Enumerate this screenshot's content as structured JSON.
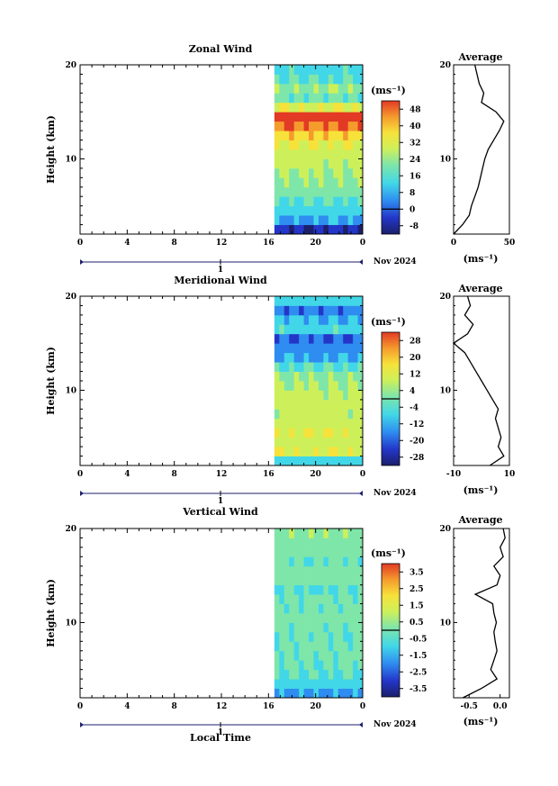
{
  "month_label": "Nov 2024",
  "day_label": "1",
  "xlabel_bottom": "Local Time",
  "time_ticks": [
    "0",
    "4",
    "8",
    "12",
    "16",
    "20",
    "0"
  ],
  "chart_data": [
    {
      "type": "heatmap",
      "title": "Zonal Wind",
      "ylabel": "Height (km)",
      "ylim": [
        2,
        20
      ],
      "y_ticks": [
        "10",
        "20"
      ],
      "x_range_hours": [
        0,
        24
      ],
      "data_start_hour": 16.5,
      "colorbar": {
        "unit": "(ms⁻¹)",
        "ticks": [
          "-8",
          "0",
          "8",
          "16",
          "24",
          "32",
          "40",
          "48"
        ],
        "range": [
          -12,
          52
        ]
      },
      "profile": {
        "title": "Average",
        "unit": "(ms⁻¹)",
        "xlim": [
          0,
          50
        ],
        "x_ticks": [
          "0",
          "50"
        ],
        "heights": [
          2,
          3,
          4,
          5,
          6,
          7,
          8,
          9,
          10,
          11,
          12,
          13,
          14,
          15,
          16,
          17,
          18,
          19,
          20
        ],
        "values": [
          0,
          8,
          14,
          16,
          19,
          22,
          24,
          26,
          28,
          31,
          36,
          41,
          45,
          38,
          25,
          27,
          23,
          21,
          19
        ]
      },
      "height_levels": [
        2,
        3,
        4,
        5,
        6,
        7,
        8,
        9,
        10,
        11,
        12,
        13,
        14,
        15,
        16,
        17,
        18,
        19,
        20
      ],
      "layer_values": [
        -4,
        8,
        12,
        16,
        20,
        22,
        24,
        26,
        27,
        30,
        36,
        44,
        50,
        30,
        18,
        22,
        16,
        14,
        12
      ]
    },
    {
      "type": "heatmap",
      "title": "Meridional Wind",
      "ylabel": "Height (km)",
      "ylim": [
        2,
        20
      ],
      "y_ticks": [
        "10",
        "20"
      ],
      "x_range_hours": [
        0,
        24
      ],
      "data_start_hour": 16.5,
      "colorbar": {
        "unit": "(ms⁻¹)",
        "ticks": [
          "-28",
          "-20",
          "-12",
          "-4",
          "4",
          "12",
          "20",
          "28"
        ],
        "range": [
          -32,
          32
        ]
      },
      "profile": {
        "title": "Average",
        "unit": "(ms⁻¹)",
        "xlim": [
          -10,
          10
        ],
        "x_ticks": [
          "-10",
          "10"
        ],
        "heights": [
          2,
          3,
          4,
          5,
          6,
          7,
          8,
          9,
          10,
          11,
          12,
          13,
          14,
          15,
          16,
          17,
          18,
          19,
          20
        ],
        "values": [
          3,
          8,
          6,
          7,
          6,
          5,
          6,
          4,
          2,
          0,
          -2,
          -4,
          -6,
          -10,
          -5,
          -3,
          -6,
          -4,
          -5
        ]
      },
      "height_levels": [
        2,
        3,
        4,
        5,
        6,
        7,
        8,
        9,
        10,
        11,
        12,
        13,
        14,
        15,
        16,
        17,
        18,
        19,
        20
      ],
      "layer_values": [
        -8,
        10,
        8,
        10,
        8,
        6,
        8,
        6,
        4,
        2,
        -4,
        -12,
        -14,
        -18,
        -6,
        -10,
        -16,
        -8,
        -12
      ]
    },
    {
      "type": "heatmap",
      "title": "Vertical Wind",
      "ylabel": "Height (km)",
      "ylim": [
        2,
        20
      ],
      "y_ticks": [
        "10",
        "20"
      ],
      "x_range_hours": [
        0,
        24
      ],
      "data_start_hour": 16.5,
      "colorbar": {
        "unit": "(ms⁻¹)",
        "ticks": [
          "-3.5",
          "-2.5",
          "-1.5",
          "-0.5",
          "0.5",
          "1.5",
          "2.5",
          "3.5"
        ],
        "range": [
          -4,
          4
        ]
      },
      "profile": {
        "title": "Average",
        "unit": "(ms⁻¹)",
        "xlim": [
          -0.75,
          0.15
        ],
        "x_ticks": [
          "-0.5",
          "0.0"
        ],
        "heights": [
          2,
          3,
          4,
          5,
          6,
          7,
          8,
          9,
          10,
          11,
          12,
          13,
          14,
          15,
          16,
          17,
          18,
          19,
          20
        ],
        "values": [
          -0.6,
          -0.3,
          -0.05,
          -0.15,
          -0.1,
          -0.05,
          -0.08,
          -0.1,
          -0.06,
          -0.1,
          -0.12,
          -0.4,
          -0.05,
          0.0,
          -0.1,
          0.05,
          0.0,
          0.08,
          0.05
        ]
      },
      "height_levels": [
        2,
        3,
        4,
        5,
        6,
        7,
        8,
        9,
        10,
        11,
        12,
        13,
        14,
        15,
        16,
        17,
        18,
        19,
        20
      ],
      "layer_values": [
        -1.5,
        -0.8,
        -0.5,
        -0.3,
        -0.2,
        -0.2,
        -0.3,
        -0.2,
        -0.1,
        -0.2,
        -0.2,
        -0.6,
        -0.1,
        0.0,
        -0.3,
        0.1,
        0.0,
        0.2,
        0.1
      ]
    }
  ]
}
